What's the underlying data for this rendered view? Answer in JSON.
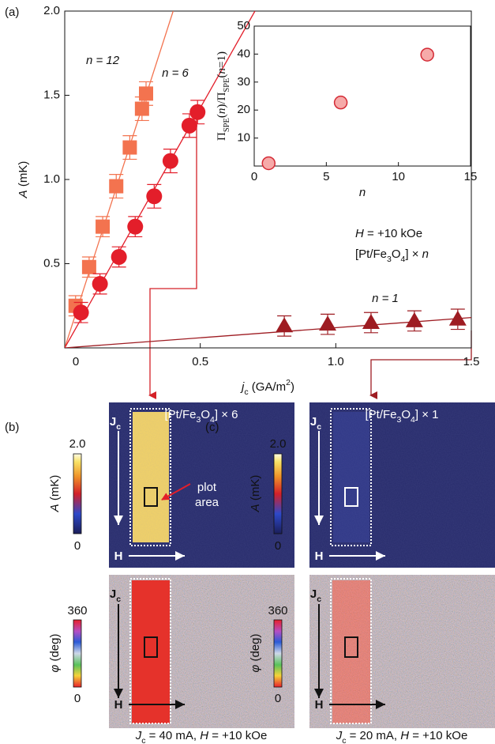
{
  "chart_data": [
    {
      "type": "scatter",
      "panel_label": "(a)",
      "xlabel": [
        "j",
        "c",
        " (GA/m",
        "2",
        ")"
      ],
      "ylabel": [
        "A",
        " (mK)"
      ],
      "xlim": [
        0,
        1.5
      ],
      "ylim": [
        0,
        2
      ],
      "xticks": [
        0,
        0.5,
        {
          "value": 1,
          "label": "1.0"
        },
        1.5
      ],
      "yticks": [
        0.5,
        {
          "value": 1,
          "label": "1.0"
        },
        1.5,
        {
          "value": 2,
          "label": "2.0"
        }
      ],
      "series": [
        {
          "name": "n = 12",
          "marker": "square",
          "color": "#f3734f",
          "x": [
            0.04,
            0.09,
            0.14,
            0.19,
            0.24,
            0.285,
            0.3
          ],
          "values": [
            0.25,
            0.48,
            0.72,
            0.96,
            1.19,
            1.42,
            1.51
          ],
          "errors": [
            0.06,
            0.06,
            0.06,
            0.07,
            0.07,
            0.07,
            0.07
          ],
          "fit_slope": 5.0
        },
        {
          "name": "n = 6",
          "marker": "circle",
          "color": "#e31e2a",
          "x": [
            0.06,
            0.13,
            0.2,
            0.26,
            0.33,
            0.39,
            0.46,
            0.49
          ],
          "values": [
            0.21,
            0.38,
            0.54,
            0.72,
            0.9,
            1.11,
            1.32,
            1.4
          ],
          "errors": [
            0.06,
            0.06,
            0.06,
            0.06,
            0.07,
            0.07,
            0.07,
            0.07
          ],
          "fit_slope": 2.85
        },
        {
          "name": "n = 1",
          "marker": "triangle",
          "color": "#9e1c22",
          "x": [
            0.81,
            0.97,
            1.13,
            1.29,
            1.45
          ],
          "values": [
            0.13,
            0.14,
            0.15,
            0.16,
            0.17
          ],
          "errors": [
            0.06,
            0.06,
            0.06,
            0.06,
            0.06
          ],
          "fit_slope": 0.12
        }
      ],
      "annotations": {
        "field": [
          "H",
          " = +10 kOe"
        ],
        "sample": [
          "[Pt/Fe",
          "3",
          "O",
          "4",
          "] × ",
          "n"
        ]
      }
    },
    {
      "type": "scatter",
      "xlabel": "n",
      "ylabel": [
        "Π",
        "SPE",
        "(",
        "n",
        ")/Π",
        "SPE",
        "(",
        "n",
        "=1)"
      ],
      "xlim": [
        0,
        15
      ],
      "ylim": [
        0,
        50
      ],
      "xticks": [
        0,
        5,
        10,
        15
      ],
      "yticks": [
        10,
        20,
        30,
        40,
        50
      ],
      "x": [
        1,
        6,
        12
      ],
      "values": [
        1,
        22.7,
        39.8
      ],
      "color": "#f6aaa9",
      "edge_color": "#d42a35"
    }
  ],
  "panels": [
    {
      "label": "(b)",
      "sample": [
        "[Pt/Fe",
        "3",
        "O",
        "4",
        "] × 6"
      ],
      "amp_max": "2.0",
      "amp_min": "0",
      "amp_label": [
        "A",
        " (mK)"
      ],
      "phase_max": "360",
      "phase_min": "0",
      "phase_label": [
        "φ",
        " (deg)"
      ],
      "current": [
        "J",
        "c"
      ],
      "field": "H",
      "note": [
        "plot",
        "area"
      ],
      "caption": [
        "J",
        "c",
        " = 40 mA, ",
        "H",
        " = +10 kOe"
      ]
    },
    {
      "label": "(c)",
      "sample": [
        "[Pt/Fe",
        "3",
        "O",
        "4",
        "] × 1"
      ],
      "amp_max": "2.0",
      "amp_min": "0",
      "amp_label": [
        "A",
        " (mK)"
      ],
      "phase_max": "360",
      "phase_min": "0",
      "phase_label": [
        "φ",
        " (deg)"
      ],
      "current": [
        "J",
        "c"
      ],
      "field": "H",
      "caption": [
        "J",
        "c",
        " = 20 mA, ",
        "H",
        " = +10 kOe"
      ]
    }
  ]
}
